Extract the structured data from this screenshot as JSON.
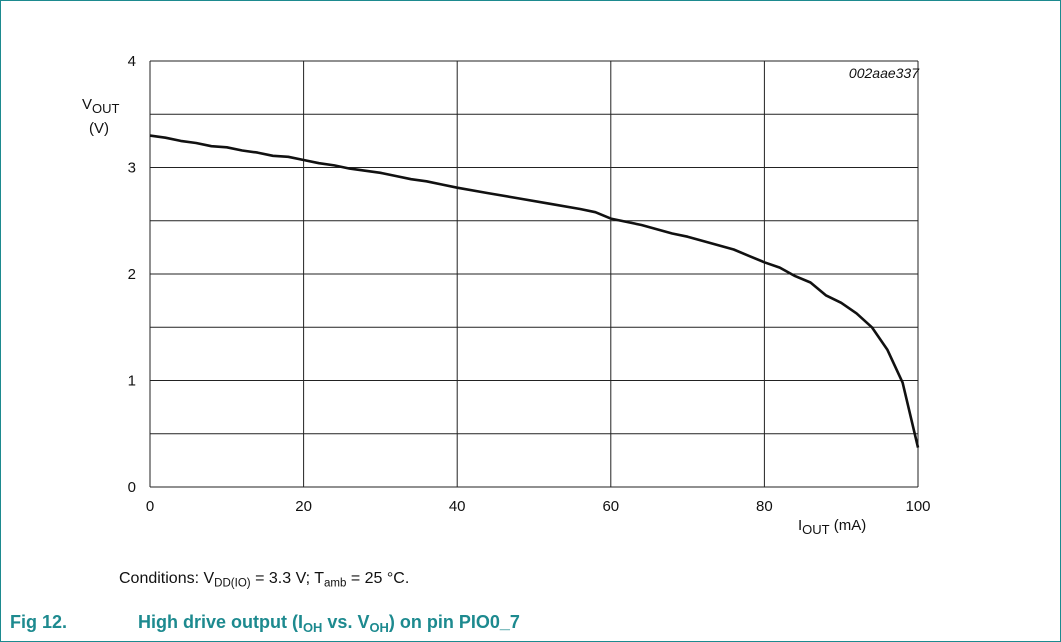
{
  "chart_data": {
    "type": "line",
    "code": "002aae337",
    "ylabel": {
      "main": "V",
      "sub": "OUT",
      "unit": "(V)"
    },
    "xlabel": {
      "main": "I",
      "sub": "OUT",
      "unit": "(mA)"
    },
    "xlim": [
      0,
      100
    ],
    "ylim": [
      0,
      4
    ],
    "x_ticks": [
      0,
      20,
      40,
      60,
      80,
      100
    ],
    "y_ticks": [
      0,
      1,
      2,
      3,
      4
    ],
    "x_grid_step": 20,
    "y_grid_step": 0.5,
    "grid": true,
    "series": [
      {
        "x": [
          0,
          2,
          4,
          6,
          8,
          10,
          12,
          14,
          16,
          18,
          20,
          22,
          24,
          26,
          28,
          30,
          32,
          34,
          36,
          38,
          40,
          44,
          48,
          52,
          56,
          58,
          60,
          64,
          68,
          70,
          72,
          76,
          78,
          80,
          82,
          84,
          86,
          88,
          90,
          92,
          94,
          96,
          98,
          100
        ],
        "y": [
          3.3,
          3.28,
          3.25,
          3.23,
          3.2,
          3.19,
          3.16,
          3.14,
          3.11,
          3.1,
          3.07,
          3.04,
          3.02,
          2.99,
          2.97,
          2.95,
          2.92,
          2.89,
          2.87,
          2.84,
          2.81,
          2.76,
          2.71,
          2.66,
          2.61,
          2.58,
          2.52,
          2.46,
          2.38,
          2.35,
          2.31,
          2.23,
          2.17,
          2.11,
          2.06,
          1.98,
          1.92,
          1.8,
          1.73,
          1.63,
          1.5,
          1.29,
          0.98,
          0.37
        ]
      }
    ]
  },
  "conditions": {
    "prefix": "Conditions: V",
    "vdd_sub": "DD(IO)",
    "mid": " = 3.3 V; T",
    "tamb_sub": "amb",
    "suffix": " = 25 °C."
  },
  "caption": {
    "fig": "Fig 12.",
    "p1": "High drive output (I",
    "s1": "OH",
    "p2": " vs. V",
    "s2": "OH",
    "p3": ") on pin PIO0_7"
  }
}
